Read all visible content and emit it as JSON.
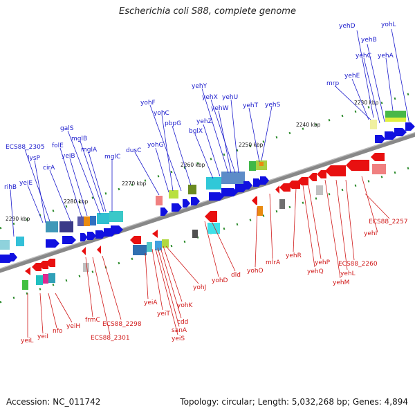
{
  "title": "Escherichia coli S88, complete genome",
  "footer": {
    "accession": "Accession: NC_011742",
    "topology": "Topology: circular; Length: 5,032,268 bp; Genes: 4,894"
  },
  "map": {
    "ticks": [
      "2230 kbp",
      "2240 kbp",
      "2250 kbp",
      "2260 kbp",
      "2270 kbp",
      "2280 kbp",
      "2290 kbp"
    ],
    "upper_labels": [
      "yehD",
      "yohL",
      "yehB",
      "yehC",
      "yehA",
      "yehE",
      "mrp",
      "yehY",
      "yehX",
      "yehU",
      "yehW",
      "yehT",
      "yehS",
      "yehZ",
      "bglX",
      "yohF",
      "yohC",
      "pbpG",
      "yohG",
      "dusC",
      "galS",
      "mglB",
      "folE",
      "yeiB",
      "mglA",
      "mglC",
      "cirA",
      "ECS88_2305",
      "lysP",
      "yeiE",
      "rihB"
    ],
    "lower_labels": [
      "ECS88_2257",
      "yehI",
      "ECS88_2260",
      "yehL",
      "yehM",
      "yehP",
      "yehQ",
      "yehR",
      "mlrA",
      "yohO",
      "dld",
      "yohD",
      "yohJ",
      "yohK",
      "cdd",
      "sanA",
      "yeiS",
      "yeiT",
      "yeiA",
      "ECS88_2298",
      "ECS88_2301",
      "frmC",
      "yeiH",
      "nfo",
      "yeiI",
      "yeiL"
    ]
  },
  "colors": {
    "forward_strand_label": "#1a1acc",
    "reverse_strand_label": "#d01818",
    "backbone": "#888888"
  }
}
